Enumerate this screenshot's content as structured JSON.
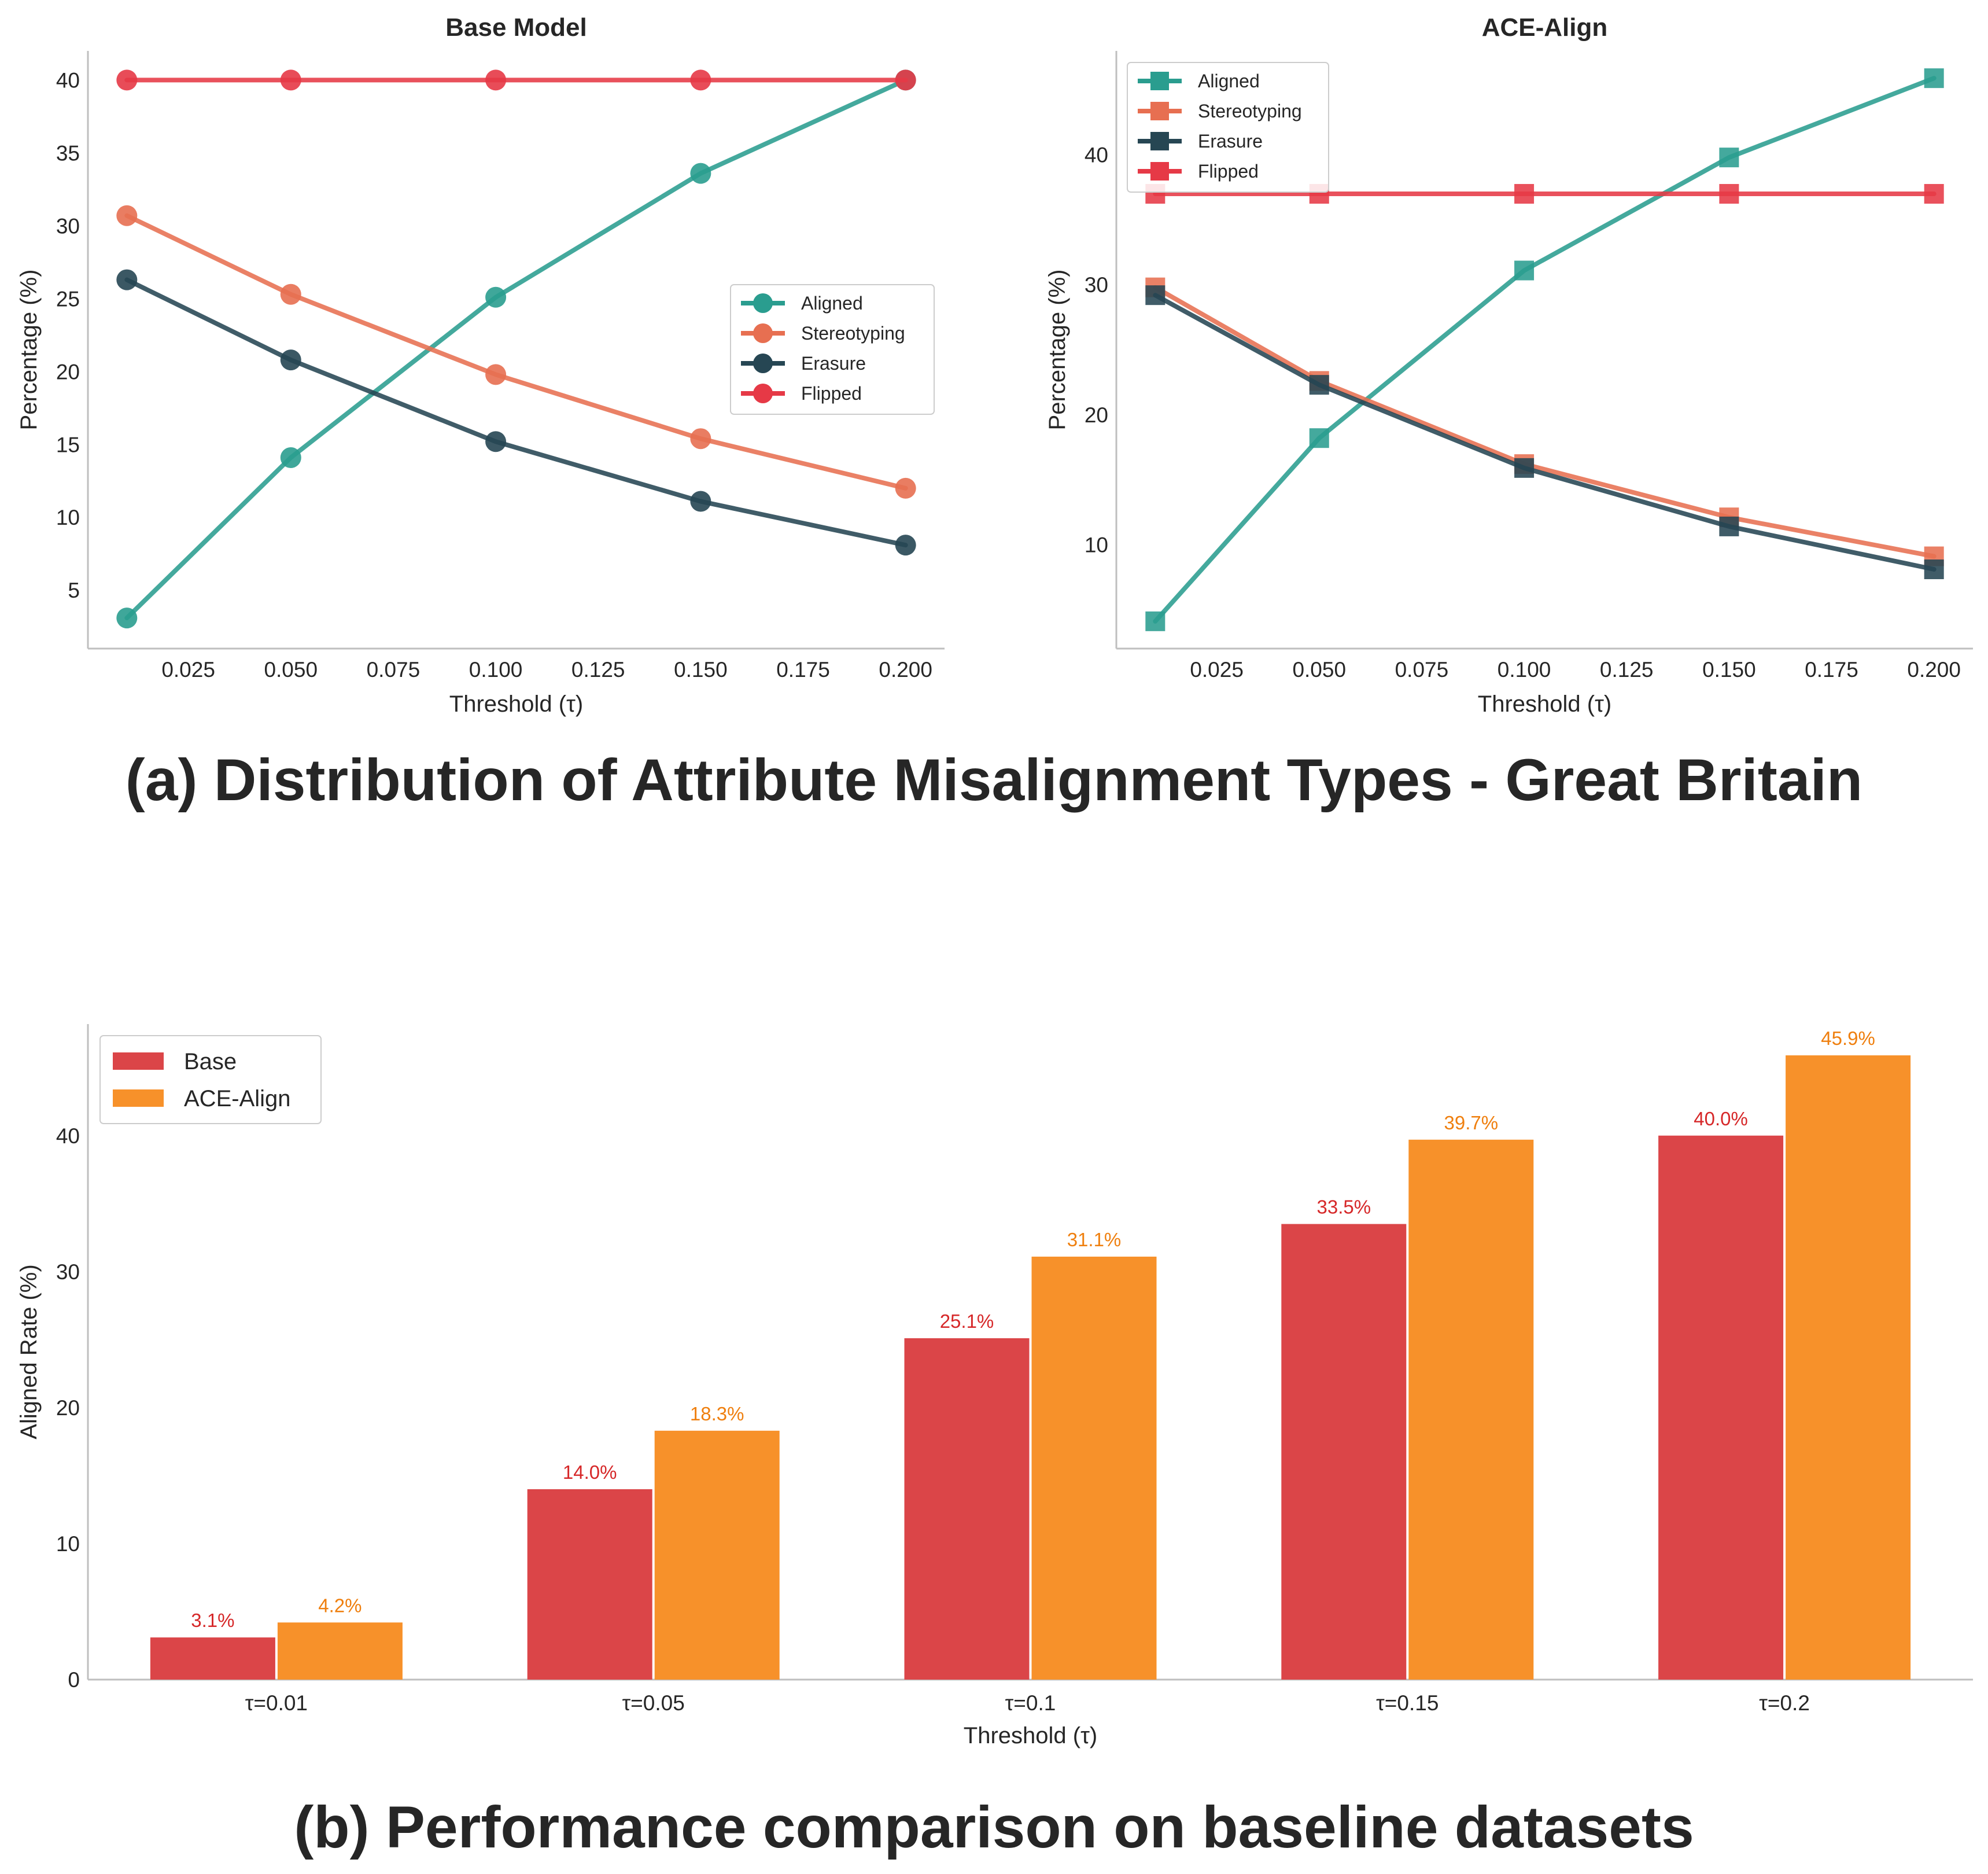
{
  "captions": {
    "a": "(a) Distribution of Attribute Misalignment Types - Great Britain",
    "b": "(b) Performance comparison on baseline datasets"
  },
  "colors": {
    "aligned": "#2a9d8f",
    "stereotyping": "#e76f51",
    "erasure": "#264653",
    "flipped": "#e63946",
    "base_bar": "#db4548",
    "ace_bar": "#f7912a",
    "base_label": "#d62728",
    "ace_label": "#ef7f0e",
    "axis": "#bfbfbf",
    "text": "#262626"
  },
  "chart_data": [
    {
      "id": "base-model",
      "type": "line",
      "marker": "circle",
      "title": "Base Model",
      "xlabel": "Threshold (τ)",
      "ylabel": "Percentage (%)",
      "xlim": [
        0.0005,
        0.2095
      ],
      "ylim": [
        1.0,
        42.0
      ],
      "xticks": [
        0.025,
        0.05,
        0.075,
        0.1,
        0.125,
        0.15,
        0.175,
        0.2
      ],
      "xtick_labels": [
        "0.025",
        "0.050",
        "0.075",
        "0.100",
        "0.125",
        "0.150",
        "0.175",
        "0.200"
      ],
      "yticks": [
        5,
        10,
        15,
        20,
        25,
        30,
        35,
        40
      ],
      "ytick_labels": [
        "5",
        "10",
        "15",
        "20",
        "25",
        "30",
        "35",
        "40"
      ],
      "legend_position": "center-right",
      "x": [
        0.01,
        0.05,
        0.1,
        0.15,
        0.2
      ],
      "series": [
        {
          "name": "Aligned",
          "color_key": "aligned",
          "values": [
            3.1,
            14.1,
            25.1,
            33.6,
            40.0
          ]
        },
        {
          "name": "Stereotyping",
          "color_key": "stereotyping",
          "values": [
            30.7,
            25.3,
            19.8,
            15.4,
            12.0
          ]
        },
        {
          "name": "Erasure",
          "color_key": "erasure",
          "values": [
            26.3,
            20.8,
            15.2,
            11.1,
            8.1
          ]
        },
        {
          "name": "Flipped",
          "color_key": "flipped",
          "values": [
            40.0,
            40.0,
            40.0,
            40.0,
            40.0
          ]
        }
      ]
    },
    {
      "id": "ace-align",
      "type": "line",
      "marker": "square",
      "title": "ACE-Align",
      "xlabel": "Threshold (τ)",
      "ylabel": "Percentage (%)",
      "xlim": [
        0.0005,
        0.2095
      ],
      "ylim": [
        2.0,
        48.0
      ],
      "xticks": [
        0.025,
        0.05,
        0.075,
        0.1,
        0.125,
        0.15,
        0.175,
        0.2
      ],
      "xtick_labels": [
        "0.025",
        "0.050",
        "0.075",
        "0.100",
        "0.125",
        "0.150",
        "0.175",
        "0.200"
      ],
      "yticks": [
        10,
        20,
        30,
        40
      ],
      "ytick_labels": [
        "10",
        "20",
        "30",
        "40"
      ],
      "legend_position": "top-left",
      "x": [
        0.01,
        0.05,
        0.1,
        0.15,
        0.2
      ],
      "series": [
        {
          "name": "Aligned",
          "color_key": "aligned",
          "values": [
            4.1,
            18.2,
            31.1,
            39.8,
            45.9
          ]
        },
        {
          "name": "Stereotyping",
          "color_key": "stereotyping",
          "values": [
            29.8,
            22.6,
            16.2,
            12.1,
            9.1
          ]
        },
        {
          "name": "Erasure",
          "color_key": "erasure",
          "values": [
            29.2,
            22.3,
            15.9,
            11.4,
            8.1
          ]
        },
        {
          "name": "Flipped",
          "color_key": "flipped",
          "values": [
            37.0,
            37.0,
            37.0,
            37.0,
            37.0
          ]
        }
      ]
    },
    {
      "id": "aligned-rate",
      "type": "bar",
      "xlabel": "Threshold (τ)",
      "ylabel": "Aligned Rate (%)",
      "ylim": [
        0,
        48.2
      ],
      "yticks": [
        0,
        10,
        20,
        30,
        40
      ],
      "ytick_labels": [
        "0",
        "10",
        "20",
        "30",
        "40"
      ],
      "legend_position": "top-left",
      "categories": [
        "τ=0.01",
        "τ=0.05",
        "τ=0.1",
        "τ=0.15",
        "τ=0.2"
      ],
      "series": [
        {
          "name": "Base",
          "color_key": "base_bar",
          "label_color_key": "base_label",
          "values": [
            3.1,
            14.0,
            25.1,
            33.5,
            40.0
          ],
          "labels": [
            "3.1%",
            "14.0%",
            "25.1%",
            "33.5%",
            "40.0%"
          ]
        },
        {
          "name": "ACE-Align",
          "color_key": "ace_bar",
          "label_color_key": "ace_label",
          "values": [
            4.2,
            18.3,
            31.1,
            39.7,
            45.9
          ],
          "labels": [
            "4.2%",
            "18.3%",
            "31.1%",
            "39.7%",
            "45.9%"
          ]
        }
      ]
    }
  ]
}
